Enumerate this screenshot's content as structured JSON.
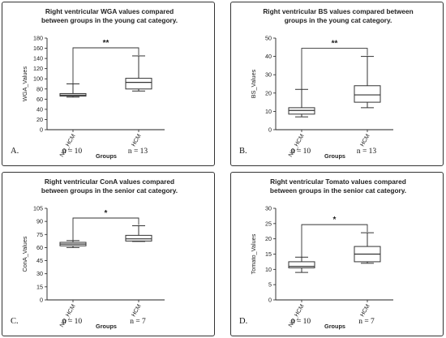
{
  "chart_data": [
    {
      "type": "boxplot",
      "letter": "A.",
      "title_lines": [
        "Right ventricular WGA values compared",
        "between groups in the young cat category."
      ],
      "ylabel": "WGA_Values",
      "xlabel": "Groups",
      "categories": [
        "NO_HCM",
        "HCM"
      ],
      "ylim": [
        0,
        180
      ],
      "yticks": [
        "0",
        "20",
        "40",
        "60",
        "80",
        "100",
        "120",
        "140",
        "160",
        "180"
      ],
      "boxes": [
        {
          "min": 64,
          "q1": 66,
          "median": 68,
          "q3": 71,
          "max": 90
        },
        {
          "min": 76,
          "q1": 80,
          "median": 93,
          "q3": 101,
          "max": 145
        }
      ],
      "significance": "**",
      "n_labels": [
        "n = 10",
        "n = 13"
      ],
      "grid": false
    },
    {
      "type": "boxplot",
      "letter": "B.",
      "title_lines": [
        "Right ventricular BS values compared between",
        "groups in the young cat category."
      ],
      "ylabel": "BS_Values",
      "xlabel": "Groups",
      "categories": [
        "NO_HCM",
        "HCM"
      ],
      "ylim": [
        0,
        50
      ],
      "yticks": [
        "0",
        "10",
        "20",
        "30",
        "40",
        "50"
      ],
      "boxes": [
        {
          "min": 7,
          "q1": 8.5,
          "median": 10.5,
          "q3": 12,
          "max": 22
        },
        {
          "min": 12,
          "q1": 15,
          "median": 19,
          "q3": 24,
          "max": 40
        }
      ],
      "significance": "**",
      "n_labels": [
        "n = 10",
        "n = 13"
      ],
      "grid": false
    },
    {
      "type": "boxplot",
      "letter": "C.",
      "title_lines": [
        "Right ventricular ConA values compared",
        "between groups in the senior cat category."
      ],
      "ylabel": "ConA_Values",
      "xlabel": "Groups",
      "categories": [
        "NO_HCM",
        "HCM"
      ],
      "ylim": [
        0,
        105
      ],
      "yticks": [
        "0",
        "15",
        "30",
        "45",
        "60",
        "75",
        "90",
        "105"
      ],
      "boxes": [
        {
          "min": 60,
          "q1": 62,
          "median": 64,
          "q3": 66,
          "max": 68
        },
        {
          "min": 67,
          "q1": 67.5,
          "median": 70,
          "q3": 74,
          "max": 85
        }
      ],
      "significance": "*",
      "n_labels": [
        "n = 10",
        "n = 7"
      ],
      "grid": false
    },
    {
      "type": "boxplot",
      "letter": "D.",
      "title_lines": [
        "Right ventricular Tomato values compared",
        "between groups in the senior cat category."
      ],
      "ylabel": "Tomato_Values",
      "xlabel": "Groups",
      "categories": [
        "NO_HCM",
        "HCM"
      ],
      "ylim": [
        0,
        30
      ],
      "yticks": [
        "0",
        "5",
        "10",
        "15",
        "20",
        "25",
        "30"
      ],
      "boxes": [
        {
          "min": 9,
          "q1": 10.5,
          "median": 11,
          "q3": 12.5,
          "max": 14
        },
        {
          "min": 12,
          "q1": 12.5,
          "median": 15,
          "q3": 17.5,
          "max": 22
        }
      ],
      "significance": "*",
      "n_labels": [
        "n = 10",
        "n = 7"
      ],
      "grid": false
    }
  ]
}
